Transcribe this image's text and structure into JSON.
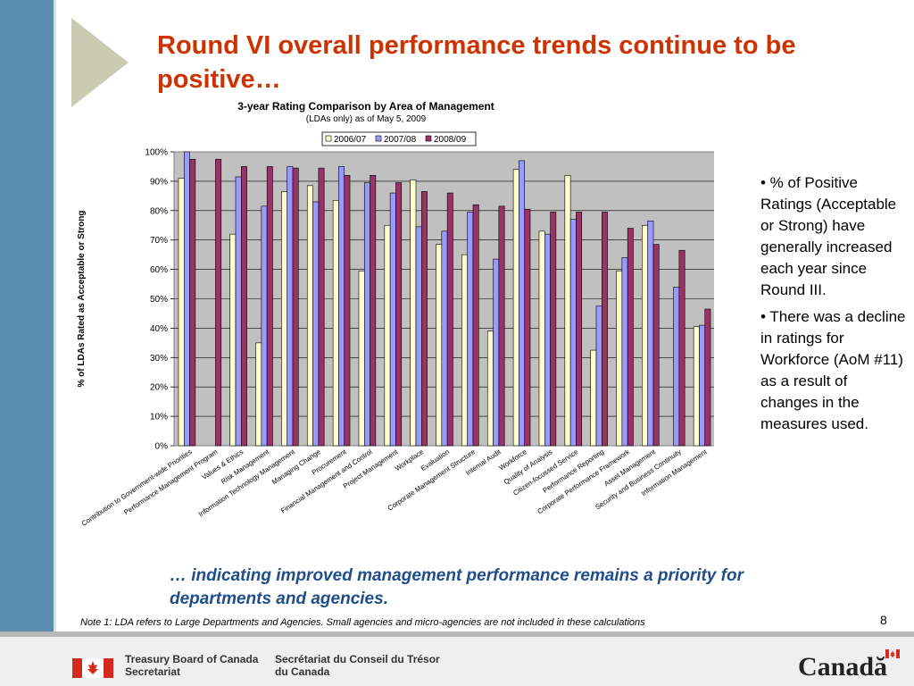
{
  "slide": {
    "title": "Round VI overall performance trends continue to be positive…",
    "bullets": [
      "•  % of Positive Ratings (Acceptable or Strong) have generally increased each year since Round III.",
      "•  There was a decline in ratings for Workforce (AoM #11) as a result of changes in the measures used."
    ],
    "bottom_text": "… indicating improved management performance remains a priority for departments and agencies.",
    "note": "Note 1: LDA refers to Large Departments and Agencies. Small agencies and micro-agencies are not included in these calculations",
    "page_number": "8"
  },
  "footer": {
    "org_en_line1": "Treasury Board of Canada",
    "org_en_line2": "Secretariat",
    "org_fr_line1": "Secrétariat du Conseil du Trésor",
    "org_fr_line2": "du Canada",
    "wordmark": "Canadă"
  },
  "colors": {
    "title": "#cc3300",
    "bottom_text": "#1f4e8a",
    "left_bar": "#5b8fb0",
    "series": [
      "#ffffcc",
      "#9999ff",
      "#993366"
    ],
    "plot_bg": "#c0c0c0"
  },
  "chart_data": {
    "type": "bar",
    "title": "3-year Rating Comparison by Area of Management",
    "subtitle": "(LDAs only) as of May 5, 2009",
    "xlabel": "",
    "ylabel": "% of LDAs Rated as Acceptable or Strong",
    "ylim": [
      0,
      100
    ],
    "yticks": [
      "0%",
      "10%",
      "20%",
      "30%",
      "40%",
      "50%",
      "60%",
      "70%",
      "80%",
      "90%",
      "100%"
    ],
    "legend_position": "top",
    "grid": true,
    "categories": [
      "Contribution to Government-wide Priorities",
      "Performance Management Program",
      "Values & Ethics",
      "Risk Management",
      "Information Technology Management",
      "Managing Change",
      "Procurement",
      "Financial Management and Control",
      "Project Management",
      "Workplace",
      "Evaluation",
      "Corporate Management Structure",
      "Internal Audit",
      "Workforce",
      "Quality of Analysis",
      "Citizen-focussed Service",
      "Performance Reporting",
      "Corporate Performance Framework",
      "Asset Management",
      "Security and Business Continuity",
      "Information Management"
    ],
    "series": [
      {
        "name": "2006/07",
        "values": [
          91,
          null,
          72,
          35,
          86.5,
          88.5,
          83.5,
          59.5,
          75,
          90.5,
          68.5,
          65,
          39,
          94,
          73,
          92,
          32.5,
          59.5,
          75,
          null,
          40.5
        ]
      },
      {
        "name": "2007/08",
        "values": [
          100,
          null,
          91.5,
          81.5,
          95,
          83,
          95,
          89.5,
          86,
          74.5,
          73,
          79.5,
          63.5,
          97,
          72,
          77,
          47.5,
          64,
          76.5,
          54,
          41
        ]
      },
      {
        "name": "2008/09",
        "values": [
          97.5,
          97.5,
          95,
          95,
          94.5,
          94.5,
          92,
          92,
          89.5,
          86.5,
          86,
          82,
          81.5,
          80.5,
          79.5,
          79.5,
          79.5,
          74,
          68.5,
          66.5,
          46.5
        ]
      }
    ]
  }
}
